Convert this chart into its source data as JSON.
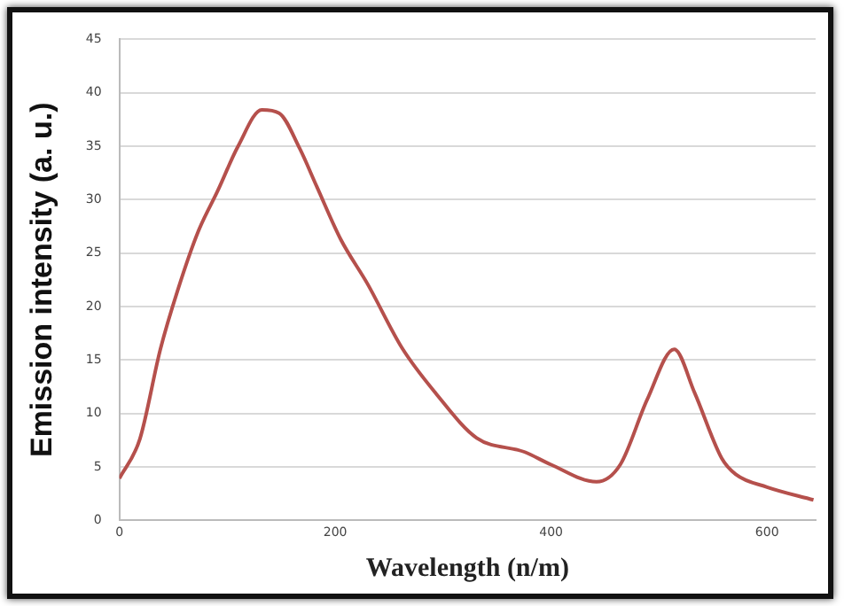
{
  "chart_data": {
    "type": "line",
    "xlabel": "Wavelength (n/m)",
    "ylabel": "Emission intensity (a. u.)",
    "series": [
      {
        "color": "#b5504c",
        "x": [
          0,
          19,
          38,
          54,
          73,
          91,
          110,
          132,
          148,
          167,
          183,
          205,
          230,
          262,
          293,
          331,
          375,
          400,
          442,
          464,
          489,
          514,
          533,
          558,
          571,
          600,
          643
        ],
        "values": [
          3.9,
          7.6,
          16,
          21.5,
          27,
          30.8,
          35,
          38.4,
          38.1,
          34.8,
          31.2,
          26.3,
          22.1,
          16.1,
          11.9,
          7.7,
          6.4,
          5.2,
          3.6,
          5.2,
          11.3,
          16,
          11.9,
          5.8,
          4.3,
          3.1,
          1.9
        ]
      }
    ],
    "xlim": [
      0,
      645
    ],
    "xticks": [
      0,
      200,
      400,
      600
    ],
    "ylim": [
      0,
      45
    ],
    "yticks": [
      0,
      5,
      10,
      15,
      20,
      25,
      30,
      35,
      40,
      45
    ],
    "grid": "y",
    "legend": false,
    "marker": "none",
    "line_style": "solid"
  }
}
